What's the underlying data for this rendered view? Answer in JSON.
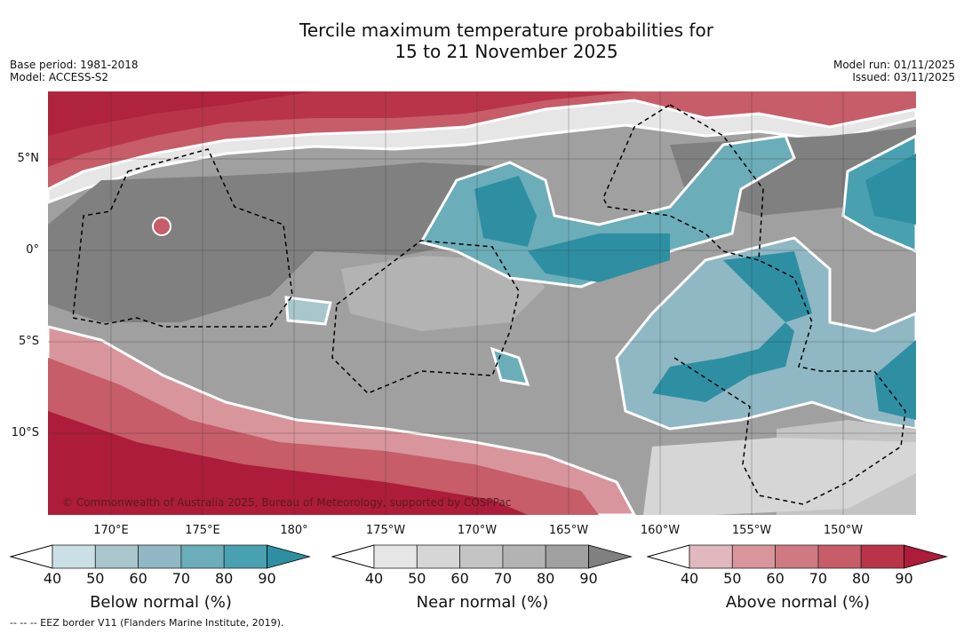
{
  "title_line1": "Tercile maximum temperature probabilities for",
  "title_line2": "15 to 21 November 2025",
  "base_period": "Base period: 1981-2018",
  "model": "Model: ACCESS-S2",
  "model_run": "Model run: 01/11/2025",
  "issued": "Issued: 03/11/2025",
  "lat_labels": [
    "5°N",
    "0°",
    "5°S",
    "10°S"
  ],
  "lon_labels": [
    "170°E",
    "175°E",
    "180°",
    "175°W",
    "170°W",
    "165°W",
    "160°W",
    "155°W",
    "150°W"
  ],
  "copyright": "© Commonwealth of Australia 2025, Bureau of Meteorology, supported by COSPPac",
  "colorbars": [
    {
      "label": "Below normal (%)",
      "ticks": [
        "40",
        "50",
        "60",
        "70",
        "80",
        "90"
      ],
      "colors": [
        "#ffffff",
        "#cae0e6",
        "#a8c6cb",
        "#8fb8c4",
        "#6badb8",
        "#49a0b0",
        "#2e8fa3"
      ]
    },
    {
      "label": "Near normal (%)",
      "ticks": [
        "40",
        "50",
        "60",
        "70",
        "80",
        "90"
      ],
      "colors": [
        "#ffffff",
        "#e6e6e6",
        "#d6d6d6",
        "#c4c4c4",
        "#b3b3b3",
        "#a0a0a0",
        "#808080"
      ]
    },
    {
      "label": "Above normal (%)",
      "ticks": [
        "40",
        "50",
        "60",
        "70",
        "80",
        "90"
      ],
      "colors": [
        "#ffffff",
        "#e0b8bd",
        "#d9959c",
        "#cf7a82",
        "#c65d69",
        "#b93449",
        "#ad1c3a"
      ]
    }
  ],
  "footnote": "--  --  -- EEZ border V11 (Flanders Marine Institute, 2019)."
}
